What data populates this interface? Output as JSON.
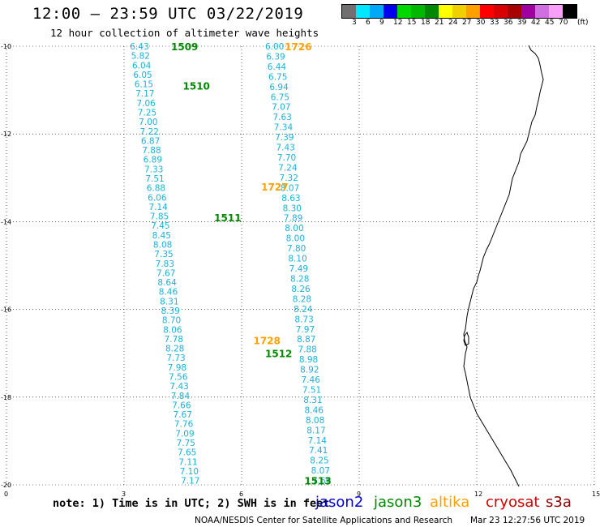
{
  "header": {
    "title": "12:00 — 23:59 UTC 03/22/2019",
    "subtitle": "12 hour collection of altimeter wave heights"
  },
  "colorbar": {
    "colors": [
      "#707070",
      "#00e8ff",
      "#00a8f8",
      "#0000f0",
      "#00d800",
      "#00b800",
      "#008800",
      "#ffff00",
      "#f0d000",
      "#ffa000",
      "#ff0000",
      "#d80000",
      "#a80000",
      "#a000a0",
      "#d070e0",
      "#f8a0f8",
      "#000000"
    ],
    "labels": [
      "3",
      "6",
      "9",
      "12",
      "15",
      "18",
      "21",
      "24",
      "27",
      "30",
      "33",
      "36",
      "39",
      "42",
      "45",
      "70",
      "(ft)"
    ]
  },
  "axes": {
    "x_ticks": [
      "0",
      "3",
      "6",
      "9",
      "12",
      "15"
    ],
    "y_ticks": [
      "-10",
      "-12",
      "-14",
      "-16",
      "-18",
      "-20"
    ],
    "grid": "dotted"
  },
  "chart_data": {
    "type": "scatter",
    "xlim": [
      0,
      15
    ],
    "ylim": [
      -20,
      -10
    ],
    "units": "ft",
    "passes": [
      {
        "label": "1509",
        "satellite": "jason3",
        "x": 4.2,
        "y": -10.0
      },
      {
        "label": "1510",
        "satellite": "jason3",
        "x": 4.5,
        "y": -10.9
      },
      {
        "label": "1511",
        "satellite": "jason3",
        "x": 5.3,
        "y": -13.9
      },
      {
        "label": "1512",
        "satellite": "jason3",
        "x": 6.6,
        "y": -17.0
      },
      {
        "label": "1513",
        "satellite": "jason3",
        "x": 7.6,
        "y": -19.9
      },
      {
        "label": "1726",
        "satellite": "altika",
        "x": 7.1,
        "y": -10.0
      },
      {
        "label": "1727",
        "satellite": "altika",
        "x": 6.5,
        "y": -13.2
      },
      {
        "label": "1728",
        "satellite": "altika",
        "x": 6.3,
        "y": -16.7
      }
    ],
    "series": [
      {
        "name": "jason3",
        "x0": 3.15,
        "y0": -10.0,
        "x1": 4.45,
        "y1": -19.9,
        "values": [
          "6.43",
          "5.82",
          "6.04",
          "6.05",
          "6.15",
          "7.17",
          "7.06",
          "7.25",
          "7.00",
          "7.22",
          "6.87",
          "7.88",
          "6.89",
          "7.33",
          "7.51",
          "6.88",
          "6.06",
          "7.14",
          "7.85",
          "7.45",
          "8.45",
          "8.08",
          "7.35",
          "7.83",
          "7.67",
          "8.64",
          "8.46",
          "8.31",
          "8.39",
          "8.70",
          "8.06",
          "7.78",
          "8.28",
          "7.73",
          "7.98",
          "7.56",
          "7.43",
          "7.84",
          "7.66",
          "7.67",
          "7.76",
          "7.09",
          "7.75",
          "7.65",
          "7.11",
          "7.10",
          "7.17"
        ]
      },
      {
        "name": "altika",
        "x0": 6.6,
        "y0": -10.0,
        "x1": 7.8,
        "y1": -19.9,
        "values": [
          "6.00",
          "6.39",
          "6.44",
          "6.75",
          "6.94",
          "6.75",
          "7.07",
          "7.63",
          "7.34",
          "7.39",
          "7.43",
          "7.70",
          "7.24",
          "7.32",
          "8.07",
          "8.63",
          "8.30",
          "7.89",
          "8.00",
          "8.00",
          "7.80",
          "8.10",
          "7.49",
          "8.28",
          "8.26",
          "8.28",
          "8.24",
          "8.73",
          "7.97",
          "8.87",
          "7.88",
          "8.98",
          "8.92",
          "7.46",
          "7.51",
          "8.31",
          "8.46",
          "8.08",
          "8.17",
          "7.14",
          "7.41",
          "8.25",
          "8.07",
          "7.66"
        ]
      }
    ]
  },
  "legend": {
    "note": "note: 1) Time is in UTC; 2) SWH is in feet",
    "items": [
      {
        "name": "jason2",
        "color": "#0000d0"
      },
      {
        "name": "jason3",
        "color": "#008800"
      },
      {
        "name": "altika",
        "color": "#ffa000"
      },
      {
        "name": "cryosat",
        "color": "#d00000"
      },
      {
        "name": "s3a",
        "color": "#8b0000"
      }
    ]
  },
  "footer": {
    "credits": "NOAA/NESDIS Center for Satellite Applications and Research",
    "timestamp": "Mar 23 12:27:56 UTC 2019"
  }
}
